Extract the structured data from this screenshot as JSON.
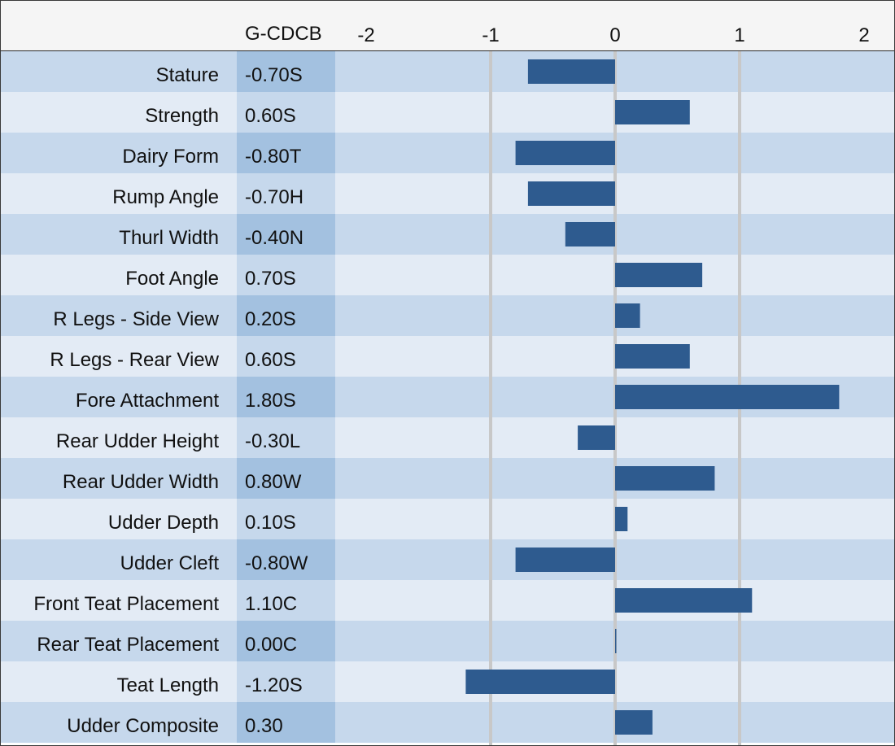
{
  "header": {
    "value_column_title": "G-CDCB"
  },
  "colors": {
    "bar": "#2e5b8f",
    "row_dark": "#c6d8ec",
    "row_light": "#e3ebf5",
    "value_dark": "#a3c1e0",
    "value_light": "#c6d8ec",
    "gridline": "#c8c8c8",
    "header_bg": "#f5f5f5"
  },
  "chart_data": {
    "type": "bar",
    "orientation": "horizontal",
    "title": "",
    "xlabel": "",
    "ylabel": "",
    "xlim": [
      -2.2,
      2.2
    ],
    "x_ticks": [
      -2,
      -1,
      0,
      1,
      2
    ],
    "x_tick_labels": [
      "-2",
      "-1",
      "0",
      "1",
      "2"
    ],
    "gridlines": [
      -1,
      0,
      1
    ],
    "categories": [
      "Stature",
      "Strength",
      "Dairy Form",
      "Rump Angle",
      "Thurl Width",
      "Foot Angle",
      "R Legs - Side View",
      "R Legs - Rear View",
      "Fore Attachment",
      "Rear Udder Height",
      "Rear Udder Width",
      "Udder Depth",
      "Udder Cleft",
      "Front Teat Placement",
      "Rear Teat Placement",
      "Teat Length",
      "Udder Composite"
    ],
    "values": [
      -0.7,
      0.6,
      -0.8,
      -0.7,
      -0.4,
      0.7,
      0.2,
      0.6,
      1.8,
      -0.3,
      0.8,
      0.1,
      -0.8,
      1.1,
      0.0,
      -1.2,
      0.3
    ],
    "value_labels": [
      "-0.70S",
      "0.60S",
      "-0.80T",
      "-0.70H",
      "-0.40N",
      "0.70S",
      "0.20S",
      "0.60S",
      "1.80S",
      "-0.30L",
      "0.80W",
      "0.10S",
      "-0.80W",
      "1.10C",
      "0.00C",
      "-1.20S",
      "0.30"
    ]
  }
}
